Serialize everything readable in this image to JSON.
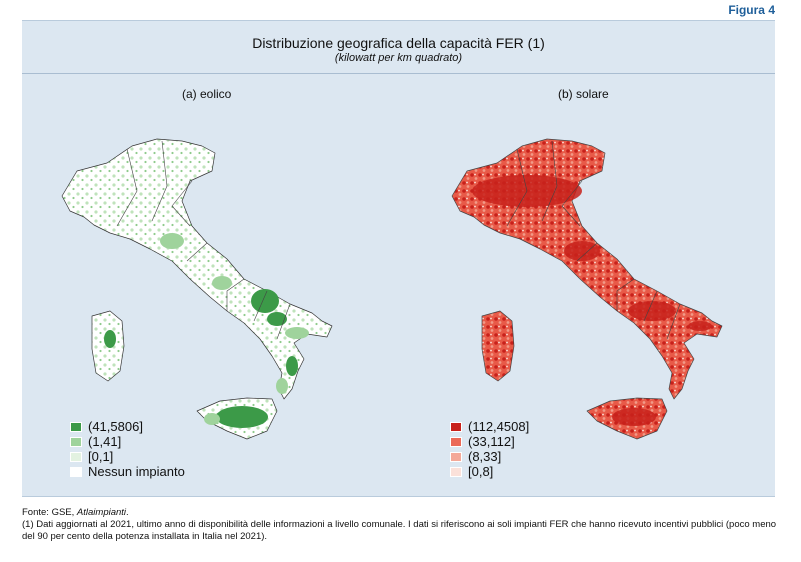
{
  "figure_label": "Figura 4",
  "title": "Distribuzione geografica della capacità FER (1)",
  "subtitle": "(kilowatt per km quadrato)",
  "maps": [
    {
      "label": "(a) eolico",
      "legend": [
        {
          "text": "(41,5806]",
          "color": "#3c9a48"
        },
        {
          "text": "(1,41]",
          "color": "#9fd39c"
        },
        {
          "text": "[0,1]",
          "color": "#e3f2e1"
        },
        {
          "text": "Nessun impianto",
          "color": "#ffffff"
        }
      ]
    },
    {
      "label": "(b) solare",
      "legend": [
        {
          "text": "(112,4508]",
          "color": "#c8211b"
        },
        {
          "text": "(33,112]",
          "color": "#eb6a58"
        },
        {
          "text": "(8,33]",
          "color": "#f4a999"
        },
        {
          "text": "[0,8]",
          "color": "#fbe1da"
        }
      ]
    }
  ],
  "footnotes": {
    "source_prefix": "Fonte: GSE, ",
    "source_name": "Atlaimpianti",
    "source_suffix": ".",
    "note": "(1) Dati aggiornati al 2021, ultimo anno di disponibilità delle informazioni a livello comunale. I dati si riferiscono ai soli impianti FER che hanno ricevuto incentivi pubblici (poco meno del 90 per cento della potenza installata in Italia nel 2021)."
  }
}
